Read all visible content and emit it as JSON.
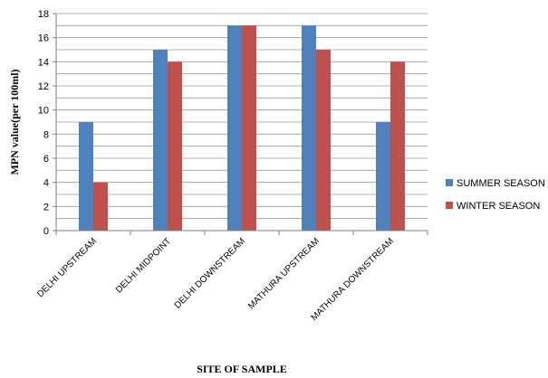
{
  "chart_data": {
    "type": "bar",
    "title": "",
    "xlabel": "SITE OF SAMPLE",
    "ylabel": "MPN value(per 100ml)",
    "ylim": [
      0,
      18
    ],
    "y_ticks": [
      0,
      2,
      4,
      6,
      8,
      10,
      12,
      14,
      16,
      18
    ],
    "grid": true,
    "legend_position": "right",
    "categories": [
      "DELHI UPSTREAM",
      "DELHI MIDPOINT",
      "DELHI DOWNSTREAM",
      "MATHURA UPSTREAM",
      "MATHURA DOWNSTREAM"
    ],
    "series": [
      {
        "name": "SUMMER SEASON",
        "color": "#4F81BD",
        "values": [
          9,
          15,
          17,
          17,
          9
        ]
      },
      {
        "name": "WINTER SEASON",
        "color": "#C0504D",
        "values": [
          4,
          14,
          17,
          15,
          14
        ]
      }
    ]
  }
}
